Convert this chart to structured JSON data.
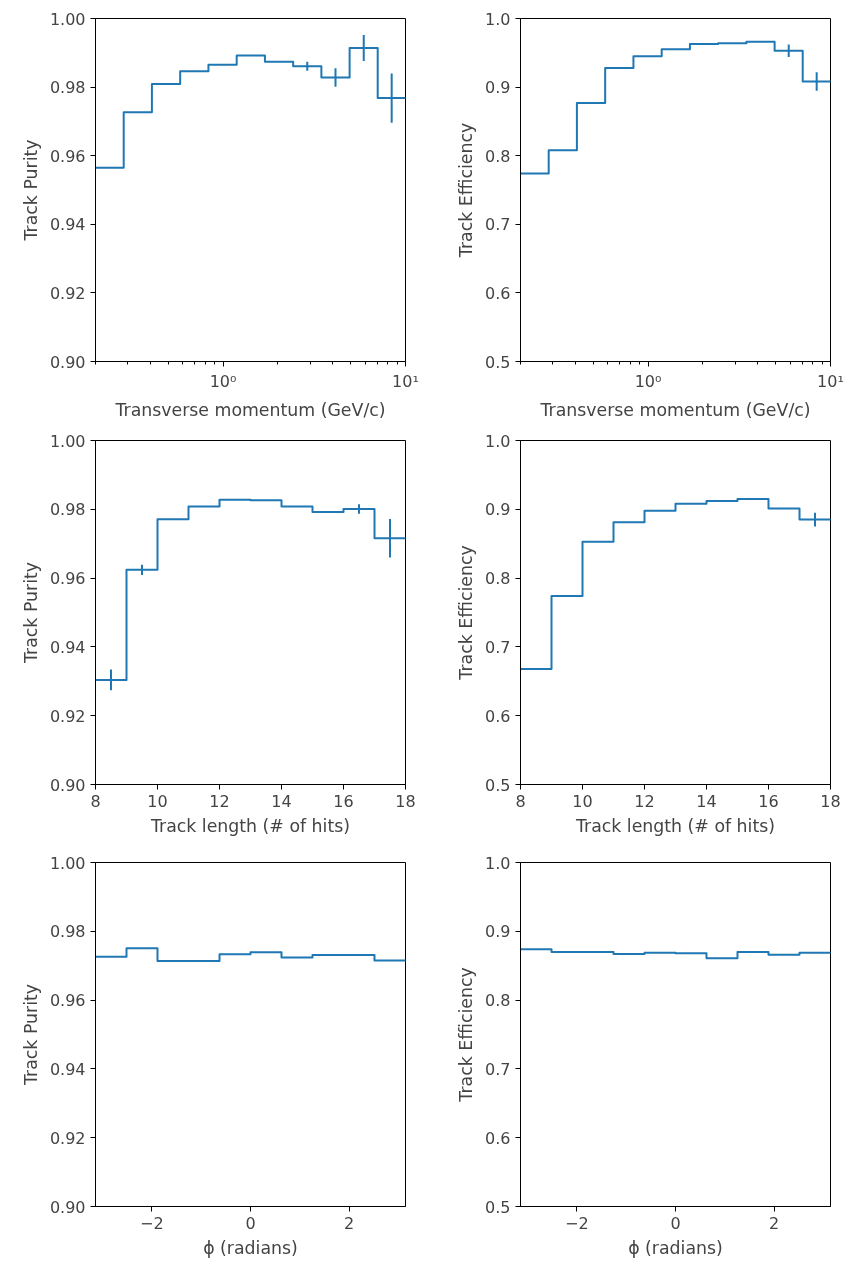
{
  "chart_data": [
    {
      "type": "step",
      "xlabel": "Transverse momentum (GeV/c)",
      "ylabel": "Track Purity",
      "log": "x",
      "color": "#1f77b4",
      "x": [
        0.239,
        0.341,
        0.487,
        0.696,
        0.994,
        1.42,
        2.027,
        2.895,
        4.134,
        5.903,
        8.399
      ],
      "values": [
        0.9565,
        0.9727,
        0.9809,
        0.9846,
        0.9865,
        0.9892,
        0.9874,
        0.9861,
        0.9828,
        0.9914,
        0.9768
      ],
      "errors": [
        null,
        null,
        null,
        null,
        null,
        null,
        null,
        0.0013,
        0.0027,
        0.0038,
        0.0072
      ],
      "xlim": [
        0.2,
        10
      ],
      "xticks": [
        {
          "value": 1,
          "label": "10⁰"
        },
        {
          "value": 10,
          "label": "10¹"
        }
      ],
      "ylim": [
        0.9,
        1.0
      ],
      "yticks": [
        {
          "value": 0.9,
          "label": "0.90"
        },
        {
          "value": 0.92,
          "label": "0.92"
        },
        {
          "value": 0.94,
          "label": "0.94"
        },
        {
          "value": 0.96,
          "label": "0.96"
        },
        {
          "value": 0.98,
          "label": "0.98"
        },
        {
          "value": 1.0,
          "label": "1.00"
        }
      ]
    },
    {
      "type": "step",
      "xlabel": "Transverse momentum (GeV/c)",
      "ylabel": "Track Efficiency",
      "log": "x",
      "color": "#1f77b4",
      "x": [
        0.239,
        0.341,
        0.487,
        0.696,
        0.994,
        1.42,
        2.027,
        2.895,
        4.134,
        5.903,
        8.399
      ],
      "values": [
        0.774,
        0.808,
        0.877,
        0.928,
        0.945,
        0.955,
        0.963,
        0.964,
        0.966,
        0.953,
        0.908
      ],
      "errors": [
        null,
        null,
        null,
        null,
        null,
        null,
        null,
        null,
        null,
        0.009,
        0.0135
      ],
      "xlim": [
        0.2,
        10
      ],
      "xticks": [
        {
          "value": 1,
          "label": "10⁰"
        },
        {
          "value": 10,
          "label": "10¹"
        }
      ],
      "ylim": [
        0.5,
        1.0
      ],
      "yticks": [
        {
          "value": 0.5,
          "label": "0.5"
        },
        {
          "value": 0.6,
          "label": "0.6"
        },
        {
          "value": 0.7,
          "label": "0.7"
        },
        {
          "value": 0.8,
          "label": "0.8"
        },
        {
          "value": 0.9,
          "label": "0.9"
        },
        {
          "value": 1.0,
          "label": "1.0"
        }
      ]
    },
    {
      "type": "step",
      "xlabel": "Track length (# of hits)",
      "ylabel": "Track Purity",
      "color": "#1f77b4",
      "x": [
        8.5,
        9.5,
        10.5,
        11.5,
        12.5,
        13.5,
        14.5,
        15.5,
        16.5,
        17.5
      ],
      "values": [
        0.9304,
        0.9624,
        0.9771,
        0.9808,
        0.9828,
        0.9826,
        0.9808,
        0.9792,
        0.9801,
        0.9716
      ],
      "errors": [
        0.003,
        0.0015,
        null,
        null,
        null,
        null,
        null,
        null,
        0.0014,
        0.0056
      ],
      "xlim": [
        8,
        18
      ],
      "xticks": [
        8,
        10,
        12,
        14,
        16,
        18
      ],
      "ylim": [
        0.9,
        1.0
      ],
      "yticks": [
        {
          "value": 0.9,
          "label": "0.90"
        },
        {
          "value": 0.92,
          "label": "0.92"
        },
        {
          "value": 0.94,
          "label": "0.94"
        },
        {
          "value": 0.96,
          "label": "0.96"
        },
        {
          "value": 0.98,
          "label": "0.98"
        },
        {
          "value": 1.0,
          "label": "1.00"
        }
      ]
    },
    {
      "type": "step",
      "xlabel": "Track length (# of hits)",
      "ylabel": "Track Efficiency",
      "color": "#1f77b4",
      "x": [
        8.5,
        9.5,
        10.5,
        11.5,
        12.5,
        13.5,
        14.5,
        15.5,
        16.5,
        17.5
      ],
      "values": [
        0.668,
        0.774,
        0.853,
        0.881,
        0.898,
        0.908,
        0.912,
        0.915,
        0.901,
        0.885
      ],
      "errors": [
        null,
        null,
        null,
        null,
        null,
        null,
        null,
        null,
        null,
        0.01
      ],
      "xlim": [
        8,
        18
      ],
      "xticks": [
        8,
        10,
        12,
        14,
        16,
        18
      ],
      "ylim": [
        0.5,
        1.0
      ],
      "yticks": [
        {
          "value": 0.5,
          "label": "0.5"
        },
        {
          "value": 0.6,
          "label": "0.6"
        },
        {
          "value": 0.7,
          "label": "0.7"
        },
        {
          "value": 0.8,
          "label": "0.8"
        },
        {
          "value": 0.9,
          "label": "0.9"
        },
        {
          "value": 1.0,
          "label": "1.0"
        }
      ]
    },
    {
      "type": "step",
      "xlabel": "ϕ (radians)",
      "ylabel": "Track Purity",
      "color": "#1f77b4",
      "x": [
        -2.827,
        -2.199,
        -1.571,
        -0.942,
        -0.314,
        0.314,
        0.942,
        1.571,
        2.199,
        2.827
      ],
      "values": [
        0.9726,
        0.9751,
        0.9714,
        0.9714,
        0.9733,
        0.9739,
        0.9724,
        0.9731,
        0.9731,
        0.9715
      ],
      "xlim": [
        -3.1416,
        3.1416
      ],
      "xticks": [
        {
          "value": -2,
          "label": "−2"
        },
        0,
        2
      ],
      "ylim": [
        0.9,
        1.0
      ],
      "yticks": [
        {
          "value": 0.9,
          "label": "0.90"
        },
        {
          "value": 0.92,
          "label": "0.92"
        },
        {
          "value": 0.94,
          "label": "0.94"
        },
        {
          "value": 0.96,
          "label": "0.96"
        },
        {
          "value": 0.98,
          "label": "0.98"
        },
        {
          "value": 1.0,
          "label": "1.00"
        }
      ]
    },
    {
      "type": "step",
      "xlabel": "ϕ (radians)",
      "ylabel": "Track Efficiency",
      "color": "#1f77b4",
      "x": [
        -2.827,
        -2.199,
        -1.571,
        -0.942,
        -0.314,
        0.314,
        0.942,
        1.571,
        2.199,
        2.827
      ],
      "values": [
        0.874,
        0.87,
        0.87,
        0.867,
        0.869,
        0.868,
        0.861,
        0.87,
        0.866,
        0.869
      ],
      "xlim": [
        -3.1416,
        3.1416
      ],
      "xticks": [
        {
          "value": -2,
          "label": "−2"
        },
        0,
        2
      ],
      "ylim": [
        0.5,
        1.0
      ],
      "yticks": [
        {
          "value": 0.5,
          "label": "0.5"
        },
        {
          "value": 0.6,
          "label": "0.6"
        },
        {
          "value": 0.7,
          "label": "0.7"
        },
        {
          "value": 0.8,
          "label": "0.8"
        },
        {
          "value": 0.9,
          "label": "0.9"
        },
        {
          "value": 1.0,
          "label": "1.0"
        }
      ]
    }
  ]
}
